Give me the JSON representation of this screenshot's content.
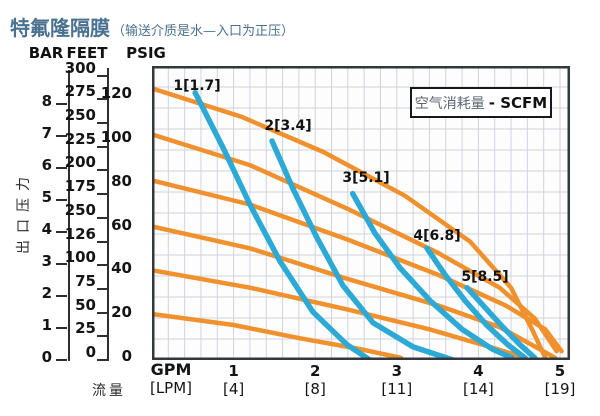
{
  "title": {
    "main": "特氟隆隔膜",
    "note": "（输送介质是水—入口为正压）"
  },
  "axis_headers": {
    "bar": "BAR",
    "feet": "FEET",
    "psig": "PSIG"
  },
  "y_axis_title": "出口压力",
  "x_axis": {
    "unit_primary": "GPM",
    "unit_secondary": "[LPM]",
    "title": "流量",
    "ticks": [
      {
        "gpm": "1",
        "lpm": "[4]"
      },
      {
        "gpm": "2",
        "lpm": "[8]"
      },
      {
        "gpm": "3",
        "lpm": "[11]"
      },
      {
        "gpm": "4",
        "lpm": "[14]"
      },
      {
        "gpm": "5",
        "lpm": "[19]"
      }
    ]
  },
  "bar_scale": [
    "8",
    "7",
    "6",
    "5",
    "4",
    "3",
    "2",
    "1",
    "0"
  ],
  "feet_scale": [
    "300",
    "275",
    "250",
    "225",
    "200",
    "175",
    "250",
    "126",
    "100",
    "75",
    "50",
    "25",
    "0"
  ],
  "psig_scale": [
    "120",
    "100",
    "80",
    "60",
    "40",
    "20",
    "0"
  ],
  "legend": {
    "cn": "空气消耗量",
    "en": "- SCFM"
  },
  "colors": {
    "flow_curves": "#f0912d",
    "air_curves": "#2da9d6",
    "title_text": "#4a7190",
    "grid": "#cfd4db",
    "plot_border": "#33383d"
  },
  "chart_data": {
    "type": "line",
    "title": "特氟隆隔膜（输送介质是水—入口为正压）",
    "xlabel": "流量 GPM [LPM]",
    "ylabel": "出口压力 BAR / FEET / PSIG",
    "legend_box": "空气消耗量 - SCFM",
    "x_range_gpm": [
      0,
      5.12
    ],
    "y_range_psig": [
      0,
      134
    ],
    "y_scales": {
      "BAR": [
        0,
        1,
        2,
        3,
        4,
        5,
        6,
        7,
        8
      ],
      "FEET_labels_top_to_bottom": [
        "300",
        "275",
        "250",
        "225",
        "200",
        "175",
        "250",
        "126",
        "100",
        "75",
        "50",
        "25",
        "0"
      ],
      "PSIG": [
        0,
        20,
        40,
        60,
        80,
        100,
        120
      ]
    },
    "x_ticks_gpm_lpm": [
      [
        1,
        4
      ],
      [
        2,
        8
      ],
      [
        3,
        11
      ],
      [
        4,
        14
      ],
      [
        5,
        19
      ]
    ],
    "grid": "on",
    "series": [
      {
        "name": "discharge-curve-120psig",
        "group": "flow-pressure",
        "color": "#f0912d",
        "points": [
          [
            0,
            124
          ],
          [
            1.1,
            111
          ],
          [
            2.1,
            95
          ],
          [
            3.1,
            75
          ],
          [
            3.9,
            54
          ],
          [
            4.4,
            33
          ],
          [
            4.67,
            13
          ],
          [
            4.82,
            1
          ]
        ]
      },
      {
        "name": "discharge-curve-100psig",
        "group": "flow-pressure",
        "color": "#f0912d",
        "points": [
          [
            0,
            103
          ],
          [
            1.2,
            89
          ],
          [
            2.4,
            69
          ],
          [
            3.5,
            49
          ],
          [
            4.26,
            33
          ],
          [
            4.69,
            19
          ],
          [
            4.96,
            4
          ]
        ]
      },
      {
        "name": "discharge-curve-80psig",
        "group": "flow-pressure",
        "color": "#f0912d",
        "points": [
          [
            0,
            82
          ],
          [
            1.2,
            71
          ],
          [
            2.4,
            55
          ],
          [
            3.5,
            39
          ],
          [
            4.33,
            25
          ],
          [
            4.82,
            14
          ],
          [
            5.02,
            4
          ]
        ]
      },
      {
        "name": "discharge-curve-60psig",
        "group": "flow-pressure",
        "color": "#f0912d",
        "points": [
          [
            0,
            61
          ],
          [
            1.2,
            51
          ],
          [
            2.4,
            37
          ],
          [
            3.5,
            25
          ],
          [
            4.26,
            15
          ],
          [
            4.75,
            5
          ],
          [
            4.94,
            1
          ]
        ]
      },
      {
        "name": "discharge-curve-40psig",
        "group": "flow-pressure",
        "color": "#f0912d",
        "points": [
          [
            0,
            41
          ],
          [
            1.2,
            33
          ],
          [
            2.4,
            23
          ],
          [
            3.4,
            14
          ],
          [
            4.14,
            6
          ],
          [
            4.57,
            1
          ]
        ]
      },
      {
        "name": "discharge-curve-20psig",
        "group": "flow-pressure",
        "color": "#f0912d",
        "points": [
          [
            0,
            21
          ],
          [
            1,
            16
          ],
          [
            1.8,
            10
          ],
          [
            2.55,
            5
          ],
          [
            3.05,
            1
          ]
        ]
      },
      {
        "name": "air-consumption-1",
        "group": "air-scfm",
        "label": "1[1.7]",
        "color": "#2da9d6",
        "points": [
          [
            0.53,
            122
          ],
          [
            0.87,
            97
          ],
          [
            1.2,
            71
          ],
          [
            1.57,
            45
          ],
          [
            1.97,
            22
          ],
          [
            2.39,
            7
          ],
          [
            2.67,
            0
          ]
        ]
      },
      {
        "name": "air-consumption-2",
        "group": "air-scfm",
        "label": "2[3.4]",
        "color": "#2da9d6",
        "points": [
          [
            1.47,
            100
          ],
          [
            1.73,
            78
          ],
          [
            2.02,
            56
          ],
          [
            2.34,
            34
          ],
          [
            2.71,
            17
          ],
          [
            3.2,
            6
          ],
          [
            3.69,
            0
          ]
        ]
      },
      {
        "name": "air-consumption-3",
        "group": "air-scfm",
        "label": "3[5.1]",
        "color": "#2da9d6",
        "points": [
          [
            2.46,
            76
          ],
          [
            2.73,
            58
          ],
          [
            3.04,
            42
          ],
          [
            3.41,
            27
          ],
          [
            3.8,
            14
          ],
          [
            4.17,
            5
          ],
          [
            4.41,
            1
          ]
        ]
      },
      {
        "name": "air-consumption-4",
        "group": "air-scfm",
        "label": "4[6.8]",
        "color": "#2da9d6",
        "points": [
          [
            3.37,
            51
          ],
          [
            3.59,
            39
          ],
          [
            3.84,
            27
          ],
          [
            4.1,
            16
          ],
          [
            4.36,
            7
          ],
          [
            4.57,
            1
          ]
        ]
      },
      {
        "name": "air-consumption-5",
        "group": "air-scfm",
        "label": "5[8.5]",
        "color": "#2da9d6",
        "points": [
          [
            3.86,
            33
          ],
          [
            4.08,
            24
          ],
          [
            4.3,
            15
          ],
          [
            4.51,
            7
          ],
          [
            4.69,
            1
          ]
        ]
      }
    ]
  }
}
